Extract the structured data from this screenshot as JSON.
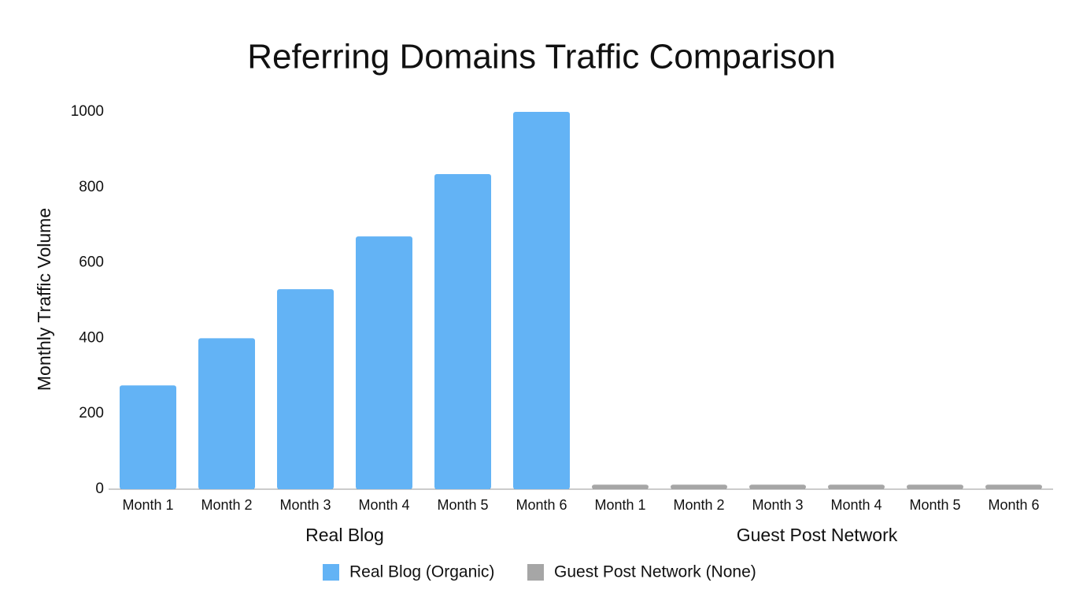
{
  "chart_data": {
    "type": "bar",
    "title": "Referring Domains Traffic Comparison",
    "y_label": "Monthly Traffic Volume",
    "categories": [
      "Month 1",
      "Month 2",
      "Month 3",
      "Month 4",
      "Month 5",
      "Month 6",
      "Month 1",
      "Month 2",
      "Month 3",
      "Month 4",
      "Month 5",
      "Month 6"
    ],
    "groups": [
      "Real Blog",
      "Guest Post Network"
    ],
    "series": [
      {
        "name": "Real Blog (Organic)",
        "color": "#63b3f5",
        "values": [
          275,
          400,
          530,
          670,
          835,
          1000,
          null,
          null,
          null,
          null,
          null,
          null
        ]
      },
      {
        "name": "Guest Post Network (None)",
        "color": "#a6a6a6",
        "values": [
          null,
          null,
          null,
          null,
          null,
          null,
          12,
          12,
          12,
          12,
          12,
          12
        ]
      }
    ],
    "ylim": [
      0,
      1000
    ],
    "yticks": [
      0,
      200,
      400,
      600,
      800,
      1000
    ],
    "grid": false
  }
}
